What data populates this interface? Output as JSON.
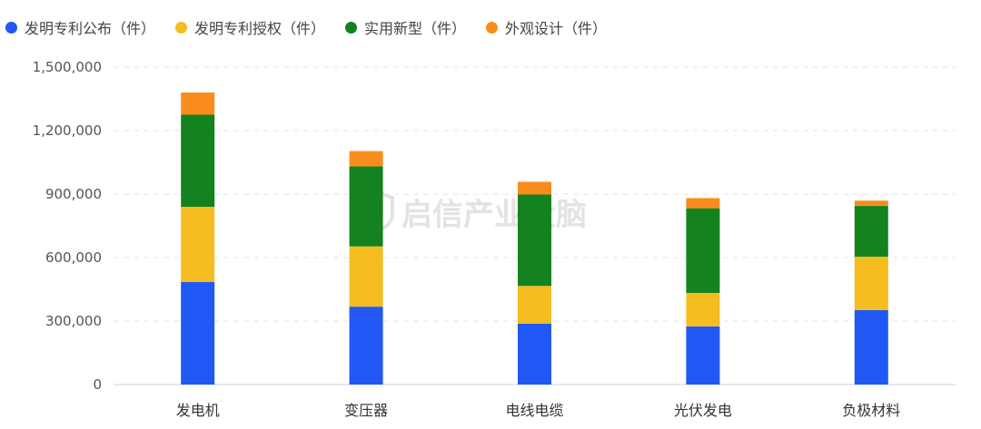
{
  "chart_data": {
    "type": "bar",
    "stacked": true,
    "categories": [
      "发电机",
      "变压器",
      "电线电缆",
      "光伏发电",
      "负极材料"
    ],
    "series": [
      {
        "name": "发明专利公布（件）",
        "color": "#2157f5",
        "values": [
          485000,
          368000,
          288000,
          275000,
          352000
        ]
      },
      {
        "name": "发明专利授权（件）",
        "color": "#f5bd1f",
        "values": [
          355000,
          285000,
          178000,
          158000,
          252000
        ]
      },
      {
        "name": "实用新型（件）",
        "color": "#14821f",
        "values": [
          435000,
          378000,
          432000,
          400000,
          240000
        ]
      },
      {
        "name": "外观设计（件）",
        "color": "#fa8c1e",
        "values": [
          105000,
          72000,
          60000,
          48000,
          25000
        ]
      }
    ],
    "ylim": [
      0,
      1500000
    ],
    "yticks": [
      "0",
      "300,000",
      "600,000",
      "900,000",
      "1,200,000",
      "1,500,000"
    ],
    "ytick_values": [
      0,
      300000,
      600000,
      900000,
      1200000,
      1500000
    ],
    "grid": true,
    "legend_position": "top-left",
    "watermark": "启信产业大脑"
  }
}
